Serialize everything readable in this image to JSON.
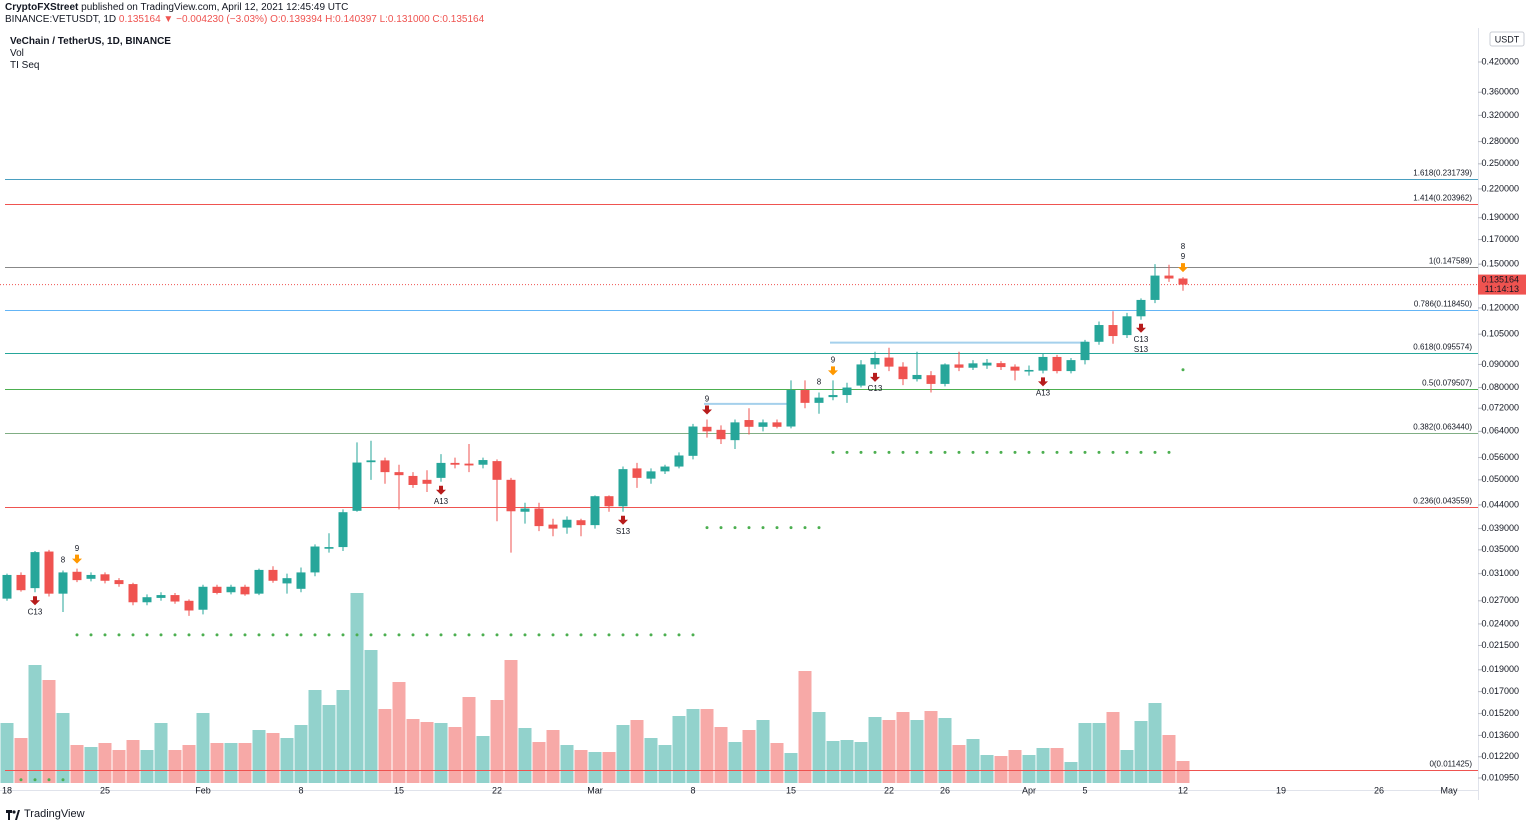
{
  "header": {
    "author": "CryptoFXStreet",
    "published": "published on TradingView.com, April 12, 2021 12:45:49 UTC",
    "symbol": "BINANCE:VETUSDT, 1D",
    "last": "0.135164",
    "change": "▼ −0.004230 (−3.03%)",
    "ohlc": "O:0.139394 H:0.140397 L:0.131000 C:0.135164"
  },
  "legend": {
    "title": "VeChain / TetherUS, 1D, BINANCE",
    "studies": [
      "Vol",
      "TI Seq"
    ]
  },
  "footer": {
    "brand": "TradingView"
  },
  "chart_data": {
    "type": "candlestick",
    "log_scale": true,
    "grid": false,
    "currency": "USDT",
    "up_color": "#26a69a",
    "down_color": "#ef5350",
    "ylim": [
      0.0103,
      0.4994
    ],
    "yticks": [
      {
        "value": 0.42,
        "label": "0.420000"
      },
      {
        "value": 0.36,
        "label": "0.360000"
      },
      {
        "value": 0.32,
        "label": "0.320000"
      },
      {
        "value": 0.28,
        "label": "0.280000"
      },
      {
        "value": 0.25,
        "label": "0.250000"
      },
      {
        "value": 0.22,
        "label": "0.220000"
      },
      {
        "value": 0.19,
        "label": "0.190000"
      },
      {
        "value": 0.17,
        "label": "0.170000"
      },
      {
        "value": 0.15,
        "label": "0.150000"
      },
      {
        "value": 0.12,
        "label": "0.120000"
      },
      {
        "value": 0.105,
        "label": "0.105000"
      },
      {
        "value": 0.09,
        "label": "0.090000"
      },
      {
        "value": 0.08,
        "label": "0.080000"
      },
      {
        "value": 0.072,
        "label": "0.072000"
      },
      {
        "value": 0.064,
        "label": "0.064000"
      },
      {
        "value": 0.056,
        "label": "0.056000"
      },
      {
        "value": 0.05,
        "label": "0.050000"
      },
      {
        "value": 0.044,
        "label": "0.044000"
      },
      {
        "value": 0.039,
        "label": "0.039000"
      },
      {
        "value": 0.035,
        "label": "0.035000"
      },
      {
        "value": 0.031,
        "label": "0.031000"
      },
      {
        "value": 0.027,
        "label": "0.027000"
      },
      {
        "value": 0.024,
        "label": "0.024000"
      },
      {
        "value": 0.0215,
        "label": "0.021500"
      },
      {
        "value": 0.019,
        "label": "0.019000"
      },
      {
        "value": 0.017,
        "label": "0.017000"
      },
      {
        "value": 0.0152,
        "label": "0.015200"
      },
      {
        "value": 0.0136,
        "label": "0.013600"
      },
      {
        "value": 0.0122,
        "label": "0.012200"
      },
      {
        "value": 0.01095,
        "label": "0.010950"
      }
    ],
    "categories": [
      "18",
      null,
      null,
      null,
      null,
      null,
      null,
      "25",
      null,
      null,
      null,
      null,
      null,
      null,
      "Feb",
      null,
      null,
      null,
      null,
      null,
      null,
      "8",
      null,
      null,
      null,
      null,
      null,
      null,
      "15",
      null,
      null,
      null,
      null,
      null,
      null,
      "22",
      null,
      null,
      null,
      null,
      null,
      null,
      "Mar",
      null,
      null,
      null,
      null,
      null,
      null,
      "8",
      null,
      null,
      null,
      null,
      null,
      null,
      "15",
      null,
      null,
      null,
      null,
      null,
      null,
      "22",
      null,
      null,
      null,
      "26",
      null,
      null,
      null,
      null,
      null,
      "Apr",
      null,
      null,
      null,
      "5",
      null,
      null,
      null,
      null,
      null,
      null,
      "12",
      null,
      null,
      null,
      null,
      null,
      null,
      "19",
      null,
      null,
      null,
      null,
      null,
      null,
      "26",
      null,
      null,
      null,
      null,
      "May"
    ],
    "open": [
      0.0273,
      0.0308,
      0.0288,
      0.0347,
      0.028,
      0.0313,
      0.0302,
      0.0309,
      0.03,
      0.0294,
      0.0268,
      0.0274,
      0.0278,
      0.027,
      0.0258,
      0.029,
      0.0282,
      0.029,
      0.028,
      0.0316,
      0.0295,
      0.0287,
      0.0312,
      0.0352,
      0.0355,
      0.0427,
      0.0547,
      0.0552,
      0.052,
      0.051,
      0.05,
      0.0505,
      0.0545,
      0.0543,
      0.054,
      0.055,
      0.05,
      0.0425,
      0.0432,
      0.0398,
      0.0392,
      0.0407,
      0.0397,
      0.046,
      0.0437,
      0.053,
      0.0503,
      0.0522,
      0.0535,
      0.0565,
      0.0655,
      0.0645,
      0.0612,
      0.0678,
      0.0655,
      0.067,
      0.0656,
      0.079,
      0.074,
      0.0762,
      0.077,
      0.0808,
      0.09,
      0.0932,
      0.089,
      0.0835,
      0.0852,
      0.0815,
      0.09,
      0.0885,
      0.0895,
      0.0906,
      0.089,
      0.0868,
      0.0872,
      0.0935,
      0.087,
      0.092,
      0.101,
      0.11,
      0.1045,
      0.115,
      0.125,
      0.1415,
      0.139394,
      null,
      null,
      null,
      null,
      null,
      null,
      null,
      null,
      null,
      null,
      null,
      null,
      null,
      null,
      null,
      null,
      null,
      null,
      null
    ],
    "high": [
      0.031,
      0.0312,
      0.0348,
      0.035,
      0.0315,
      0.0318,
      0.0312,
      0.0312,
      0.0303,
      0.0296,
      0.0279,
      0.0282,
      0.0281,
      0.0272,
      0.0293,
      0.0293,
      0.0293,
      0.0293,
      0.0318,
      0.0322,
      0.031,
      0.032,
      0.036,
      0.0381,
      0.043,
      0.0605,
      0.061,
      0.056,
      0.054,
      0.052,
      0.0525,
      0.057,
      0.056,
      0.06,
      0.056,
      0.0555,
      0.0505,
      0.0445,
      0.0445,
      0.041,
      0.0415,
      0.041,
      0.0462,
      0.0462,
      0.0535,
      0.0545,
      0.053,
      0.054,
      0.0575,
      0.0665,
      0.068,
      0.066,
      0.068,
      0.072,
      0.068,
      0.068,
      0.083,
      0.083,
      0.078,
      0.083,
      0.082,
      0.092,
      0.096,
      0.098,
      0.091,
      0.096,
      0.087,
      0.0905,
      0.096,
      0.092,
      0.0925,
      0.0915,
      0.09,
      0.0895,
      0.095,
      0.0945,
      0.093,
      0.102,
      0.112,
      0.118,
      0.117,
      0.126,
      0.15,
      0.1495,
      0.140397,
      null,
      null,
      null,
      null,
      null,
      null,
      null,
      null,
      null,
      null,
      null,
      null,
      null,
      null,
      null,
      null,
      null,
      null,
      null
    ],
    "low": [
      0.027,
      0.0283,
      0.0282,
      0.0276,
      0.0255,
      0.0297,
      0.0298,
      0.0295,
      0.029,
      0.0264,
      0.0264,
      0.027,
      0.0266,
      0.025,
      0.0252,
      0.0279,
      0.0279,
      0.0277,
      0.0278,
      0.0296,
      0.028,
      0.0282,
      0.0306,
      0.0345,
      0.0348,
      0.0425,
      0.05,
      0.049,
      0.043,
      0.048,
      0.047,
      0.0495,
      0.053,
      0.052,
      0.053,
      0.0405,
      0.0345,
      0.04,
      0.0385,
      0.0375,
      0.038,
      0.0375,
      0.039,
      0.0425,
      0.0425,
      0.048,
      0.049,
      0.0515,
      0.053,
      0.0555,
      0.062,
      0.06,
      0.0585,
      0.063,
      0.064,
      0.065,
      0.065,
      0.072,
      0.07,
      0.075,
      0.074,
      0.08,
      0.088,
      0.087,
      0.081,
      0.0825,
      0.078,
      0.0805,
      0.087,
      0.0875,
      0.088,
      0.0875,
      0.083,
      0.085,
      0.086,
      0.086,
      0.086,
      0.09,
      0.0995,
      0.1,
      0.103,
      0.113,
      0.123,
      0.137,
      0.131,
      null,
      null,
      null,
      null,
      null,
      null,
      null,
      null,
      null,
      null,
      null,
      null,
      null,
      null,
      null,
      null,
      null,
      null,
      null
    ],
    "close": [
      0.0308,
      0.0285,
      0.0346,
      0.028,
      0.0312,
      0.03,
      0.0308,
      0.0299,
      0.0294,
      0.0268,
      0.0275,
      0.0278,
      0.0269,
      0.0257,
      0.029,
      0.0281,
      0.029,
      0.0279,
      0.0316,
      0.0299,
      0.0303,
      0.0312,
      0.0356,
      0.0355,
      0.0424,
      0.0546,
      0.0552,
      0.052,
      0.0512,
      0.0487,
      0.049,
      0.0545,
      0.054,
      0.0538,
      0.0553,
      0.05,
      0.0426,
      0.0432,
      0.0395,
      0.039,
      0.0408,
      0.0397,
      0.046,
      0.0437,
      0.0528,
      0.0505,
      0.0522,
      0.0535,
      0.0566,
      0.0656,
      0.064,
      0.0615,
      0.067,
      0.0655,
      0.067,
      0.0655,
      0.079,
      0.074,
      0.076,
      0.077,
      0.08,
      0.09,
      0.093,
      0.089,
      0.0835,
      0.0853,
      0.0815,
      0.09,
      0.0885,
      0.0905,
      0.0908,
      0.0888,
      0.0872,
      0.0875,
      0.0935,
      0.087,
      0.092,
      0.101,
      0.11,
      0.104,
      0.115,
      0.125,
      0.1415,
      0.1394,
      0.135164,
      null,
      null,
      null,
      null,
      null,
      null,
      null,
      null,
      null,
      null,
      null,
      null,
      null,
      null,
      null,
      null,
      null,
      null,
      null
    ],
    "vlim": [
      0,
      200
    ],
    "volume": [
      60,
      45,
      118,
      103,
      70,
      38,
      36,
      40,
      33,
      43,
      33,
      60,
      33,
      38,
      70,
      40,
      40,
      40,
      53,
      50,
      45,
      58,
      93,
      78,
      93,
      190,
      133,
      74,
      101,
      64,
      61,
      60,
      56,
      86,
      47,
      83,
      123,
      55,
      41,
      53,
      38,
      33,
      31,
      31,
      58,
      63,
      45,
      38,
      67,
      74,
      74,
      56,
      41,
      53,
      63,
      40,
      30,
      112,
      71,
      42,
      43,
      41,
      66,
      63,
      71,
      63,
      72,
      65,
      38,
      44,
      28,
      27,
      33,
      28,
      35,
      35,
      21,
      60,
      60,
      71,
      33,
      62,
      80,
      48,
      22,
      null,
      null,
      null,
      null,
      null,
      null,
      null,
      null,
      null,
      null,
      null,
      null,
      null,
      null,
      null,
      null,
      null,
      null,
      null
    ],
    "last_price": 0.135164,
    "countdown": "11:14:13",
    "fib": [
      {
        "label": "1.618(0.231739)",
        "value": 0.231739,
        "color": "#4a9fc0"
      },
      {
        "label": "1.414(0.203962)",
        "value": 0.203962,
        "color": "#ef5350"
      },
      {
        "label": "1(0.147589)",
        "value": 0.147589,
        "color": "#888888"
      },
      {
        "label": "0.786(0.118450)",
        "value": 0.11845,
        "color": "#64b5f6"
      },
      {
        "label": "0.618(0.095574)",
        "value": 0.095574,
        "color": "#26a69a"
      },
      {
        "label": "0.5(0.079507)",
        "value": 0.079507,
        "color": "#4caf50"
      },
      {
        "label": "0.382(0.063440)",
        "value": 0.06344,
        "color": "#80ae84"
      },
      {
        "label": "0.236(0.043559)",
        "value": 0.043559,
        "color": "#ef5350"
      },
      {
        "label": "0(0.011425)",
        "value": 0.011425,
        "color": "#ef5350"
      }
    ],
    "levels": [
      {
        "price": 0.0227,
        "from": 5,
        "to": 49,
        "style": "dots",
        "color": "#4caf50"
      },
      {
        "price": 0.0392,
        "from": 50,
        "to": 58,
        "style": "dots",
        "color": "#4caf50"
      },
      {
        "price": 0.0575,
        "from": 59,
        "to": 83,
        "style": "dots",
        "color": "#4caf50"
      },
      {
        "price": 0.01085,
        "from": 1,
        "to": 4,
        "style": "dots",
        "color": "#4caf50"
      },
      {
        "price": 0.0876,
        "from": 84,
        "to": 84,
        "style": "dots",
        "color": "#4caf50"
      },
      {
        "price": 0.0736,
        "from": 50,
        "to": 56,
        "style": "solid",
        "color": "#a5d0ec"
      },
      {
        "price": 0.1006,
        "from": 59,
        "to": 77,
        "style": "solid",
        "color": "#a5d0ec"
      }
    ],
    "markers": [
      {
        "index": 2,
        "label": "C13",
        "color": "#d04ad8",
        "side": "below"
      },
      {
        "index": 5,
        "label": "9",
        "color": "#26a69a",
        "side": "above"
      },
      {
        "index": 4,
        "label": "8",
        "color": "#ff9800",
        "side": "above"
      },
      {
        "index": 31,
        "label": "A13",
        "color": "#2196f3",
        "side": "below"
      },
      {
        "index": 44,
        "label": "S13",
        "color": "#ff9800",
        "side": "below"
      },
      {
        "index": 50,
        "label": "9",
        "color": "#26a69a",
        "side": "above"
      },
      {
        "index": 58,
        "label": "8",
        "color": "#ff9800",
        "side": "above"
      },
      {
        "index": 59,
        "label": "9",
        "color": "#26a69a",
        "side": "above"
      },
      {
        "index": 62,
        "label": "C13",
        "color": "#d04ad8",
        "side": "below"
      },
      {
        "index": 74,
        "label": "A13",
        "color": "#2196f3",
        "side": "below"
      },
      {
        "index": 81,
        "label": "C13",
        "color": "#d04ad8",
        "side": "below"
      },
      {
        "index": 81,
        "label": "S13",
        "color": "#ff9800",
        "side": "below"
      },
      {
        "index": 84,
        "label": "9",
        "color": "#26a69a",
        "side": "above"
      },
      {
        "index": 84,
        "label": "8",
        "color": "#ff9800",
        "side": "above"
      }
    ],
    "arrows": [
      {
        "index": 2,
        "side": "below",
        "color": "#b71c1c"
      },
      {
        "index": 5,
        "side": "above",
        "color": "#ff9800"
      },
      {
        "index": 31,
        "side": "below",
        "color": "#b71c1c"
      },
      {
        "index": 44,
        "side": "below",
        "color": "#b71c1c"
      },
      {
        "index": 50,
        "side": "above",
        "color": "#b71c1c"
      },
      {
        "index": 59,
        "side": "above",
        "color": "#ff9800"
      },
      {
        "index": 62,
        "side": "below",
        "color": "#b71c1c"
      },
      {
        "index": 74,
        "side": "below",
        "color": "#b71c1c"
      },
      {
        "index": 81,
        "side": "below",
        "color": "#b71c1c"
      },
      {
        "index": 84,
        "side": "above",
        "color": "#ff9800"
      }
    ]
  }
}
